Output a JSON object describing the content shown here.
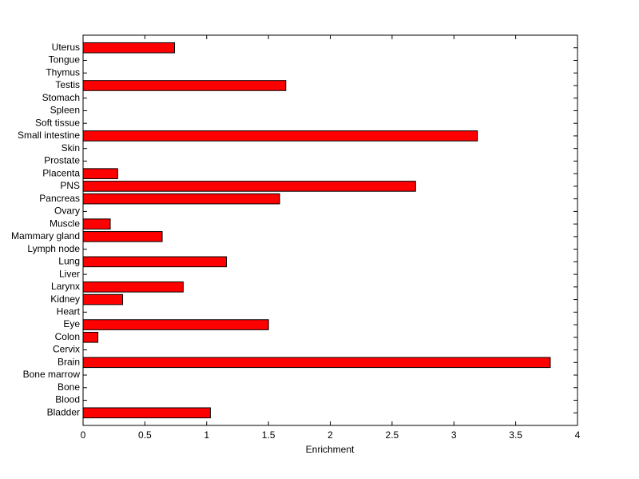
{
  "chart_data": {
    "type": "barh",
    "xlabel": "Enrichment",
    "categories": [
      "Bladder",
      "Blood",
      "Bone",
      "Bone marrow",
      "Brain",
      "Cervix",
      "Colon",
      "Eye",
      "Heart",
      "Kidney",
      "Larynx",
      "Liver",
      "Lung",
      "Lymph node",
      "Mammary gland",
      "Muscle",
      "Ovary",
      "Pancreas",
      "PNS",
      "Placenta",
      "Prostate",
      "Skin",
      "Small intestine",
      "Soft tissue",
      "Spleen",
      "Stomach",
      "Testis",
      "Thymus",
      "Tongue",
      "Uterus"
    ],
    "values": [
      1.03,
      0,
      0,
      0,
      3.78,
      0,
      0.12,
      1.5,
      0,
      0.32,
      0.81,
      0,
      1.16,
      0,
      0.64,
      0.22,
      0,
      1.59,
      2.69,
      0.28,
      0,
      0,
      3.19,
      0,
      0,
      0,
      1.64,
      0,
      0,
      0.74
    ],
    "color": "#ff0000",
    "xlim": [
      0,
      4
    ],
    "xticks": [
      0,
      0.5,
      1,
      1.5,
      2,
      2.5,
      3,
      3.5,
      4
    ]
  }
}
